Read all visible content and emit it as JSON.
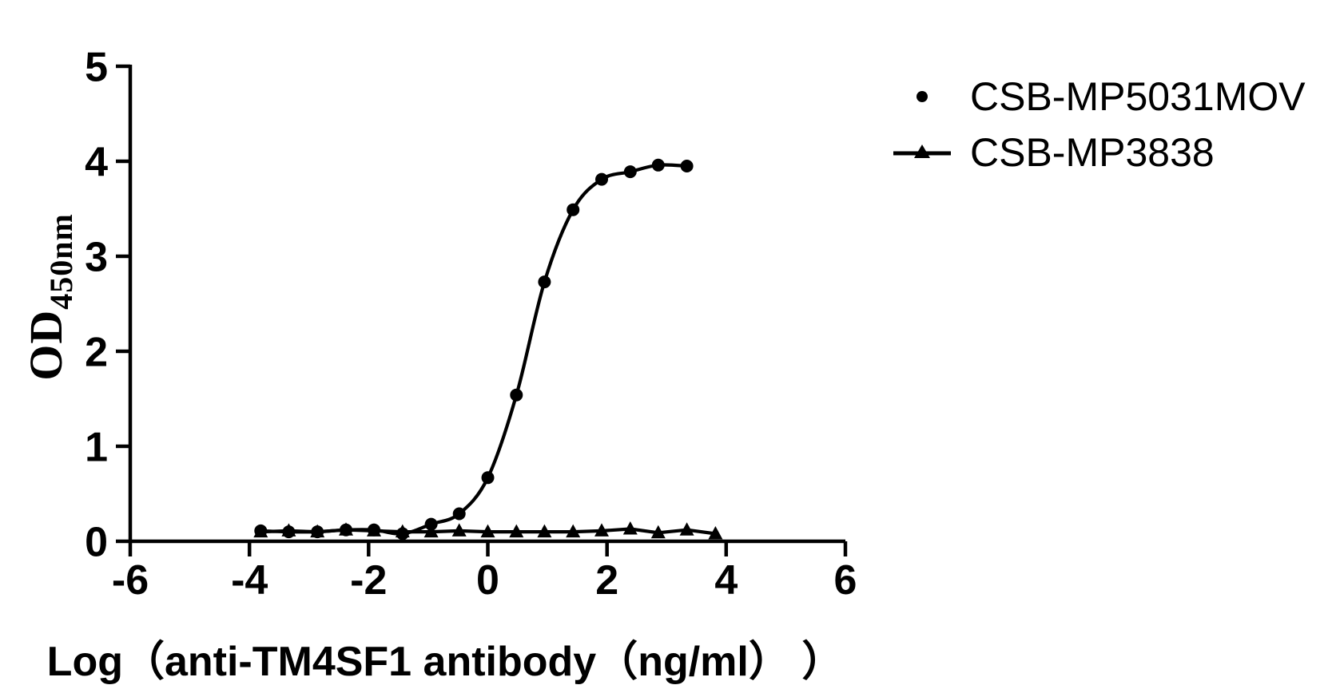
{
  "chart_data": {
    "type": "scatter",
    "title": "",
    "xlabel": "Log（anti-TM4SF1 antibody（ng/ml） ）",
    "ylabel_main": "OD",
    "ylabel_sub": "450nm",
    "xlim": [
      -6,
      6
    ],
    "ylim": [
      0,
      5
    ],
    "x_ticks": [
      "-6",
      "-4",
      "-2",
      "0",
      "2",
      "4",
      "6"
    ],
    "y_ticks": [
      "0",
      "1",
      "2",
      "3",
      "4",
      "5"
    ],
    "grid": false,
    "legend_position": "upper-right",
    "series": [
      {
        "name": "CSB-MP5031MOV",
        "marker": "circle",
        "line": "smooth",
        "x": [
          -3.81,
          -3.34,
          -2.86,
          -2.38,
          -1.91,
          -1.43,
          -0.95,
          -0.48,
          0.0,
          0.48,
          0.95,
          1.43,
          1.91,
          2.39,
          2.86,
          3.34
        ],
        "y": [
          0.11,
          0.1,
          0.1,
          0.12,
          0.12,
          0.08,
          0.18,
          0.29,
          0.67,
          1.54,
          2.73,
          3.49,
          3.81,
          3.89,
          3.96,
          3.95
        ]
      },
      {
        "name": "CSB-MP3838",
        "marker": "triangle",
        "line": "straight",
        "x": [
          -3.81,
          -3.34,
          -2.86,
          -2.38,
          -1.91,
          -1.43,
          -0.95,
          -0.48,
          0.0,
          0.48,
          0.95,
          1.43,
          1.91,
          2.39,
          2.86,
          3.34,
          3.82
        ],
        "y": [
          0.1,
          0.11,
          0.1,
          0.12,
          0.11,
          0.1,
          0.1,
          0.11,
          0.1,
          0.1,
          0.1,
          0.1,
          0.11,
          0.13,
          0.09,
          0.12,
          0.08
        ]
      }
    ],
    "colors": {
      "foreground": "#000000",
      "background": "#ffffff"
    }
  }
}
